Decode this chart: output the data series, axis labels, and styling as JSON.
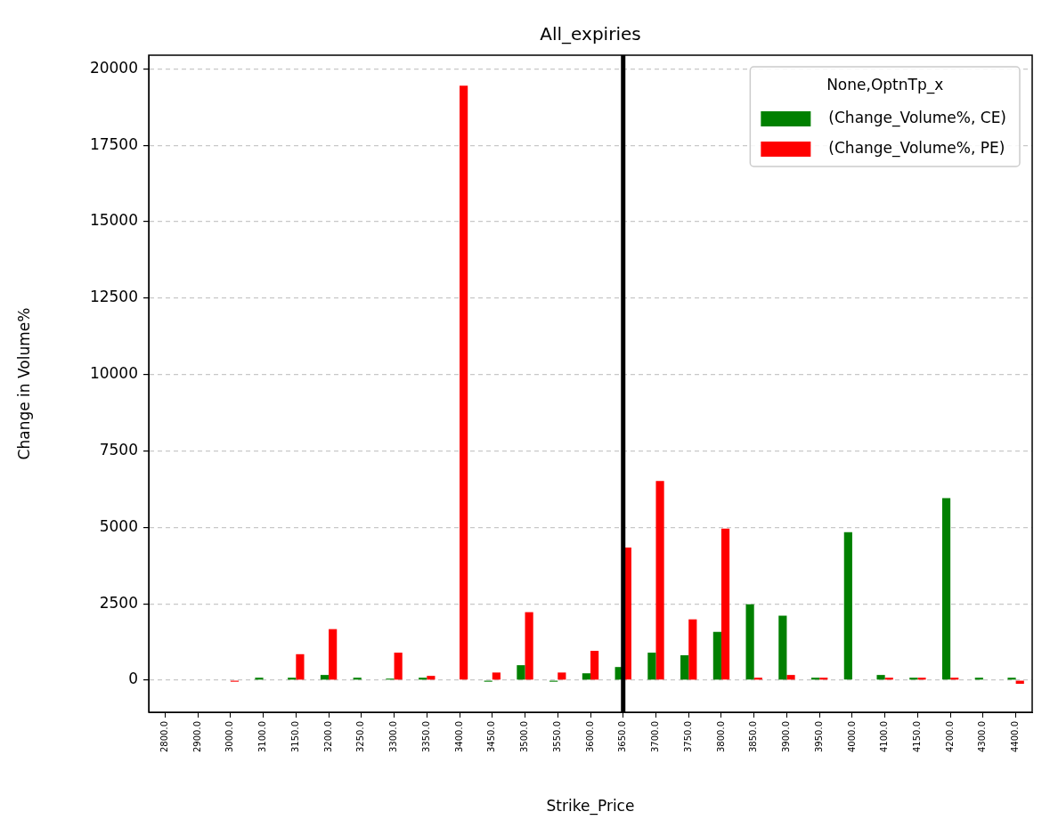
{
  "chart_data": {
    "type": "bar",
    "title": "All_expiries",
    "xlabel": "Strike_Price",
    "ylabel": "Change in Volume%",
    "legend_title": "None,OptnTp_x",
    "categories": [
      "2800.0",
      "2900.0",
      "3000.0",
      "3100.0",
      "3150.0",
      "3200.0",
      "3250.0",
      "3300.0",
      "3350.0",
      "3400.0",
      "3450.0",
      "3500.0",
      "3550.0",
      "3600.0",
      "3650.0",
      "3700.0",
      "3750.0",
      "3800.0",
      "3850.0",
      "3900.0",
      "3950.0",
      "4000.0",
      "4100.0",
      "4150.0",
      "4200.0",
      "4300.0",
      "4400.0"
    ],
    "series": [
      {
        "name": "(Change_Volume%, CE)",
        "color": "#008000",
        "values": [
          null,
          null,
          null,
          80,
          80,
          170,
          80,
          50,
          80,
          null,
          -50,
          490,
          -50,
          225,
          430,
          900,
          815,
          1580,
          2480,
          2110,
          80,
          4840,
          170,
          80,
          5960,
          80,
          80
        ]
      },
      {
        "name": "(Change_Volume%, PE)",
        "color": "#ff0000",
        "values": [
          null,
          null,
          -50,
          null,
          850,
          1670,
          null,
          900,
          140,
          19450,
          250,
          2225,
          250,
          960,
          4340,
          6520,
          1990,
          4960,
          80,
          170,
          80,
          null,
          80,
          80,
          80,
          null,
          -120
        ]
      }
    ],
    "ylim": [
      -1050,
      20450
    ],
    "yticks": [
      0,
      2500,
      5000,
      7500,
      10000,
      12500,
      15000,
      17500,
      20000
    ],
    "grid": "y",
    "legend": "top right",
    "ref_lines": [
      {
        "axis": "x",
        "value": "3650.0",
        "color": "#000000"
      }
    ]
  }
}
